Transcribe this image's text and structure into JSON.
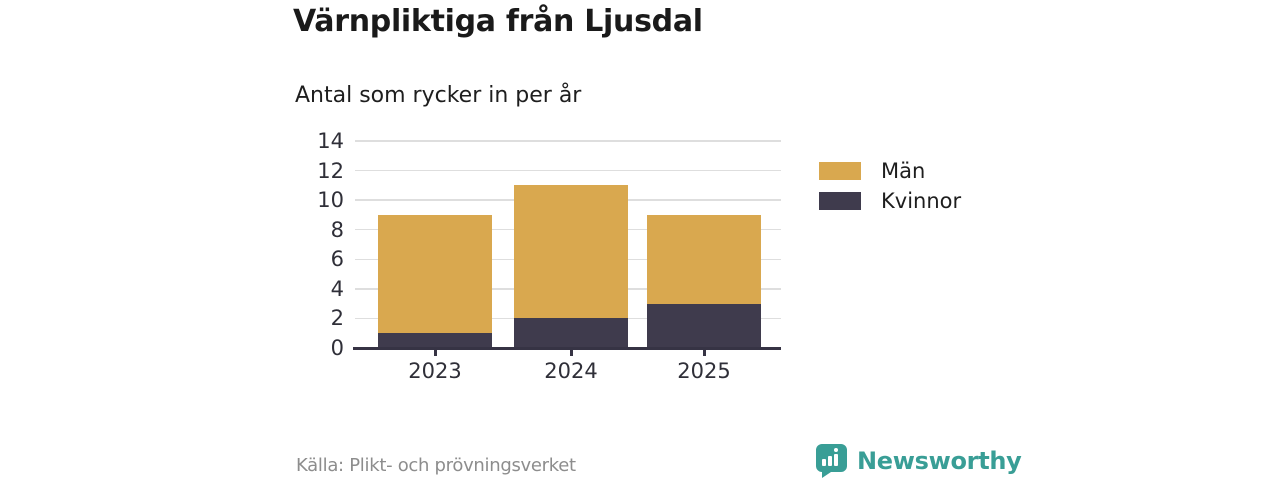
{
  "header": {
    "title": "Värnpliktiga från Ljusdal",
    "subtitle": "Antal som rycker in per år"
  },
  "footer": {
    "source": "Källa: Plikt- och prövningsverket",
    "brand_name": "Newsworthy"
  },
  "icons": {
    "brand_logo": "speech-bubble-bar-chart-icon"
  },
  "colors": {
    "men": "#d9a84f",
    "women": "#3f3b4d",
    "brand_teal": "#399e96",
    "grid": "#dedede",
    "axis": "#363344"
  },
  "chart_data": {
    "type": "bar",
    "stacked": true,
    "title": "Värnpliktiga från Ljusdal",
    "subtitle": "Antal som rycker in per år",
    "categories": [
      "2023",
      "2024",
      "2025"
    ],
    "series": [
      {
        "name": "Kvinnor",
        "color": "#3f3b4d",
        "values": [
          1,
          2,
          3
        ]
      },
      {
        "name": "Män",
        "color": "#d9a84f",
        "values": [
          8,
          9,
          6
        ]
      }
    ],
    "totals": [
      9,
      11,
      9
    ],
    "xlabel": "",
    "ylabel": "",
    "ylim": [
      0,
      14
    ],
    "yticks": [
      0,
      2,
      4,
      6,
      8,
      10,
      12,
      14
    ],
    "grid": true,
    "legend_position": "right",
    "legend_order": [
      "Män",
      "Kvinnor"
    ]
  }
}
